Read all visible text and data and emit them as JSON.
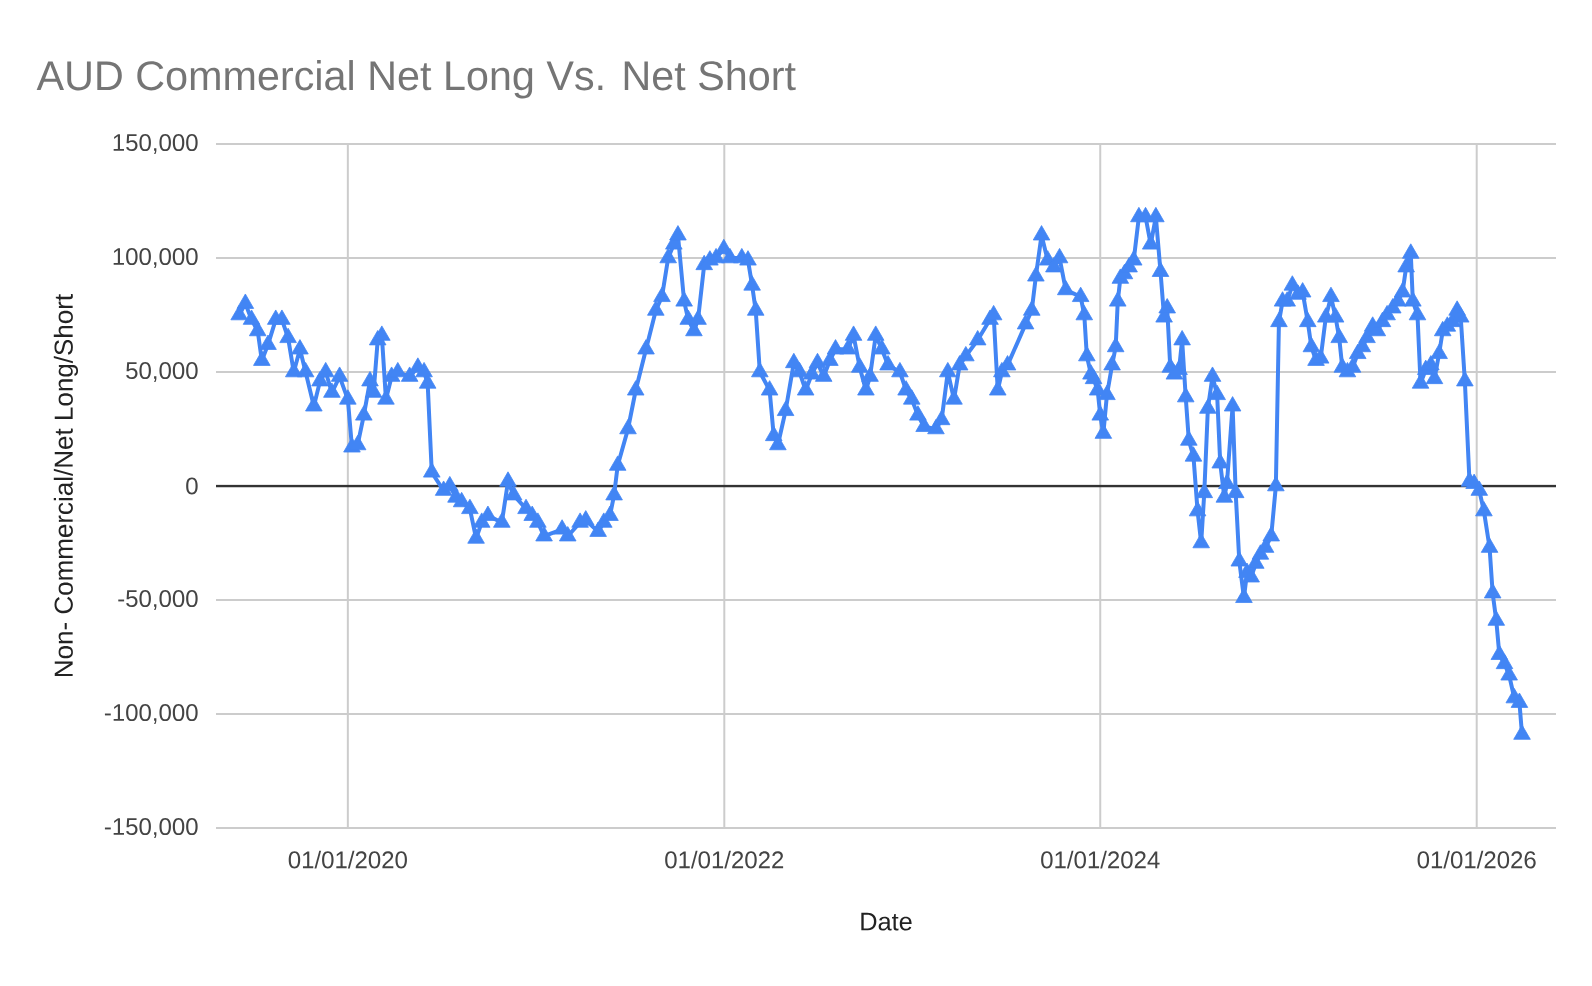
{
  "chart_data": {
    "type": "line",
    "title": "AUD Commercial Net Long Vs. Net Short",
    "xlabel": "Date",
    "ylabel": "Non- Commercial/Net Long/Short",
    "x": [
      "2019-06-04",
      "2019-06-16",
      "2019-06-28",
      "2019-07-10",
      "2019-07-18",
      "2019-07-30",
      "2019-08-14",
      "2019-08-26",
      "2019-09-07",
      "2019-09-18",
      "2019-09-30",
      "2019-10-11",
      "2019-10-27",
      "2019-11-08",
      "2019-11-19",
      "2019-12-01",
      "2019-12-16",
      "2020-01-01",
      "2020-01-09",
      "2020-01-20",
      "2020-02-01",
      "2020-02-13",
      "2020-02-20",
      "2020-02-28",
      "2020-03-07",
      "2020-03-15",
      "2020-03-26",
      "2020-04-07",
      "2020-04-30",
      "2020-05-16",
      "2020-05-28",
      "2020-06-04",
      "2020-06-12",
      "2020-07-05",
      "2020-07-17",
      "2020-07-29",
      "2020-08-09",
      "2020-08-25",
      "2020-09-06",
      "2020-09-17",
      "2020-09-29",
      "2020-10-26",
      "2020-11-07",
      "2020-11-18",
      "2020-12-12",
      "2020-12-24",
      "2021-01-04",
      "2021-01-16",
      "2021-02-20",
      "2021-03-03",
      "2021-03-27",
      "2021-04-07",
      "2021-05-01",
      "2021-05-12",
      "2021-05-24",
      "2021-06-01",
      "2021-06-08",
      "2021-06-28",
      "2021-07-13",
      "2021-08-02",
      "2021-08-21",
      "2021-09-02",
      "2021-09-14",
      "2021-09-25",
      "2021-10-03",
      "2021-10-15",
      "2021-10-23",
      "2021-11-03",
      "2021-11-11",
      "2021-11-23",
      "2021-12-04",
      "2021-12-16",
      "2021-12-31",
      "2022-01-12",
      "2022-02-04",
      "2022-02-16",
      "2022-02-24",
      "2022-03-03",
      "2022-03-11",
      "2022-03-30",
      "2022-04-07",
      "2022-04-15",
      "2022-04-30",
      "2022-05-16",
      "2022-05-27",
      "2022-06-08",
      "2022-06-20",
      "2022-07-01",
      "2022-07-13",
      "2022-07-25",
      "2022-08-05",
      "2022-08-29",
      "2022-09-09",
      "2022-09-21",
      "2022-10-03",
      "2022-10-11",
      "2022-10-22",
      "2022-11-03",
      "2022-11-15",
      "2022-12-08",
      "2022-12-20",
      "2022-12-31",
      "2023-01-12",
      "2023-01-24",
      "2023-02-16",
      "2023-02-27",
      "2023-03-11",
      "2023-03-23",
      "2023-04-03",
      "2023-04-15",
      "2023-05-08",
      "2023-06-01",
      "2023-06-08",
      "2023-06-16",
      "2023-06-24",
      "2023-07-05",
      "2023-08-09",
      "2023-08-21",
      "2023-08-29",
      "2023-09-09",
      "2023-09-21",
      "2023-10-03",
      "2023-10-14",
      "2023-10-26",
      "2023-11-24",
      "2023-12-01",
      "2023-12-06",
      "2023-12-14",
      "2023-12-19",
      "2023-12-27",
      "2024-01-01",
      "2024-01-07",
      "2024-01-14",
      "2024-01-24",
      "2024-01-31",
      "2024-02-04",
      "2024-02-09",
      "2024-02-17",
      "2024-02-26",
      "2024-03-06",
      "2024-03-16",
      "2024-03-29",
      "2024-04-08",
      "2024-04-18",
      "2024-04-27",
      "2024-05-04",
      "2024-05-10",
      "2024-05-16",
      "2024-05-24",
      "2024-06-02",
      "2024-06-08",
      "2024-06-15",
      "2024-06-21",
      "2024-06-30",
      "2024-07-08",
      "2024-07-15",
      "2024-07-21",
      "2024-07-28",
      "2024-08-06",
      "2024-08-15",
      "2024-08-21",
      "2024-08-29",
      "2024-09-03",
      "2024-09-14",
      "2024-09-20",
      "2024-09-27",
      "2024-10-06",
      "2024-10-12",
      "2024-10-20",
      "2024-10-29",
      "2024-11-07",
      "2024-11-17",
      "2024-11-28",
      "2024-12-07",
      "2024-12-13",
      "2024-12-20",
      "2024-12-29",
      "2025-01-08",
      "2025-01-19",
      "2025-01-28",
      "2025-02-07",
      "2025-02-14",
      "2025-02-23",
      "2025-03-04",
      "2025-03-14",
      "2025-03-24",
      "2025-04-02",
      "2025-04-09",
      "2025-04-15",
      "2025-04-25",
      "2025-05-05",
      "2025-05-15",
      "2025-05-24",
      "2025-06-02",
      "2025-06-13",
      "2025-06-22",
      "2025-07-02",
      "2025-07-11",
      "2025-07-22",
      "2025-08-01",
      "2025-08-10",
      "2025-08-17",
      "2025-08-26",
      "2025-08-30",
      "2025-09-08",
      "2025-09-14",
      "2025-09-24",
      "2025-10-04",
      "2025-10-11",
      "2025-10-20",
      "2025-10-27",
      "2025-11-05",
      "2025-11-15",
      "2025-11-24",
      "2025-12-01",
      "2025-12-09",
      "2025-12-18",
      "2025-12-27",
      "2026-01-06",
      "2026-01-15",
      "2026-01-26",
      "2026-02-01",
      "2026-02-08",
      "2026-02-14",
      "2026-02-24",
      "2026-03-05",
      "2026-03-15",
      "2026-03-25",
      "2026-03-30"
    ],
    "series": [
      {
        "color": "#4285f4",
        "values": [
          75000,
          80000,
          73000,
          68000,
          55000,
          62000,
          73000,
          73000,
          65000,
          50000,
          60000,
          50000,
          35000,
          46000,
          50000,
          41000,
          48000,
          38000,
          17000,
          18000,
          31000,
          46000,
          41000,
          64000,
          66000,
          38000,
          48000,
          50000,
          48000,
          52000,
          50000,
          45000,
          6000,
          -2000,
          0,
          -5000,
          -7000,
          -10000,
          -23000,
          -16000,
          -13000,
          -16000,
          2000,
          -4000,
          -10000,
          -13000,
          -16000,
          -22000,
          -19000,
          -22000,
          -16000,
          -15000,
          -20000,
          -16000,
          -13000,
          -4000,
          9000,
          25000,
          42000,
          60000,
          77000,
          83000,
          100000,
          106000,
          110000,
          81000,
          73000,
          68000,
          73000,
          97000,
          99000,
          100000,
          104000,
          100000,
          100000,
          99000,
          88000,
          77000,
          50000,
          42000,
          22000,
          18000,
          33000,
          54000,
          50000,
          42000,
          49000,
          54000,
          48000,
          55000,
          60000,
          60000,
          66000,
          52000,
          42000,
          48000,
          66000,
          60000,
          53000,
          50000,
          42000,
          38000,
          31000,
          26000,
          25000,
          29000,
          50000,
          38000,
          53000,
          57000,
          64000,
          73000,
          75000,
          42000,
          50000,
          53000,
          71000,
          77000,
          92000,
          110000,
          99000,
          96000,
          100000,
          86000,
          83000,
          75000,
          57000,
          49000,
          47000,
          42000,
          31000,
          23000,
          40000,
          53000,
          61000,
          81000,
          91000,
          93000,
          96000,
          99000,
          118000,
          118000,
          106000,
          118000,
          94000,
          74000,
          78000,
          52000,
          49000,
          51000,
          64000,
          39000,
          20000,
          13000,
          -11000,
          -25000,
          -3000,
          34000,
          48000,
          40000,
          10000,
          -5000,
          1000,
          35000,
          -3000,
          -33000,
          -49000,
          -38000,
          -40000,
          -34000,
          -30000,
          -27000,
          -22000,
          0,
          72000,
          81000,
          81000,
          88000,
          84000,
          85000,
          72000,
          61000,
          55000,
          56000,
          74000,
          83000,
          74000,
          65000,
          52000,
          50000,
          52000,
          58000,
          61000,
          65000,
          70000,
          68000,
          72000,
          75000,
          78000,
          81000,
          85000,
          96000,
          102000,
          81000,
          75000,
          45000,
          51000,
          53000,
          47000,
          58000,
          68000,
          70000,
          72000,
          77000,
          74000,
          46000,
          2000,
          1000,
          -2000,
          -11000,
          -27000,
          -47000,
          -59000,
          -74000,
          -78000,
          -83000,
          -93000,
          -95000,
          -109000
        ]
      }
    ],
    "xlim": [
      "2019-04-20",
      "2026-06-04"
    ],
    "xticks": [
      {
        "value": "2020-01-01",
        "label": "01/01/2020"
      },
      {
        "value": "2022-01-01",
        "label": "01/01/2022"
      },
      {
        "value": "2024-01-01",
        "label": "01/01/2024"
      },
      {
        "value": "2026-01-01",
        "label": "01/01/2026"
      }
    ],
    "ylim": [
      -150000,
      150000
    ],
    "yticks": [
      {
        "value": -150000,
        "label": "-150,000"
      },
      {
        "value": -100000,
        "label": "-100,000"
      },
      {
        "value": -50000,
        "label": "-50,000"
      },
      0,
      {
        "value": 50000,
        "label": "50,000"
      },
      {
        "value": 100000,
        "label": "100,000"
      },
      {
        "value": 150000,
        "label": "150,000"
      }
    ],
    "grid": true,
    "marker": "triangle",
    "line_style": "solid"
  }
}
